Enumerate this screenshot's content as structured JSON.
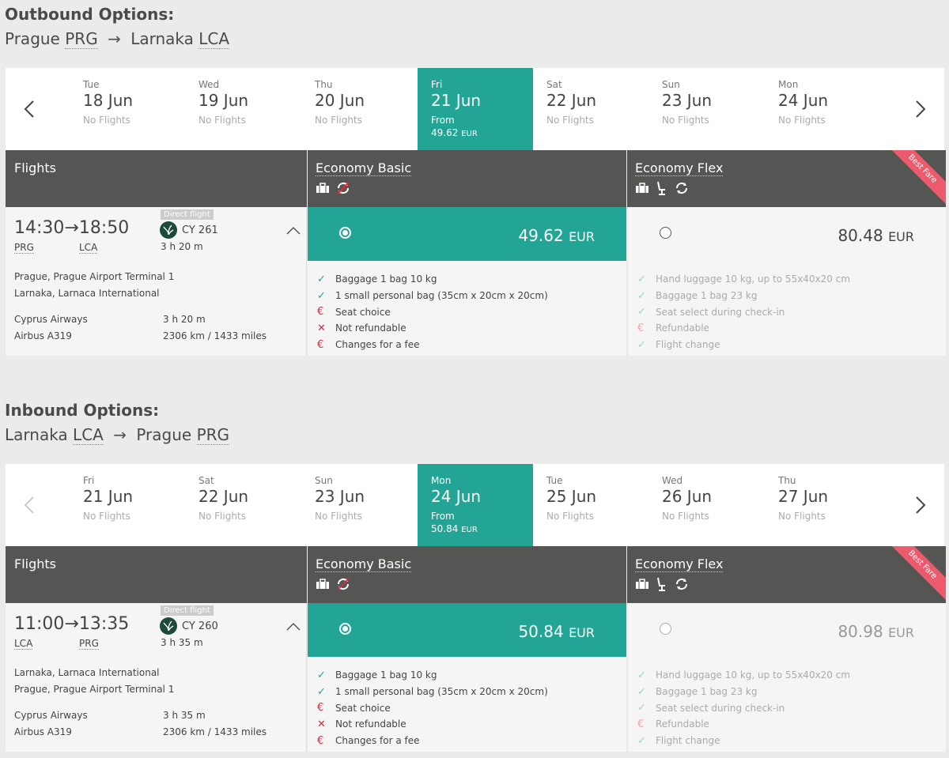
{
  "outbound": {
    "title": "Outbound Options:",
    "from_city": "Prague",
    "from_code": "PRG",
    "to_city": "Larnaka",
    "to_code": "LCA",
    "days": [
      {
        "dow": "Tue",
        "date": "18 Jun",
        "status": "No Flights"
      },
      {
        "dow": "Wed",
        "date": "19 Jun",
        "status": "No Flights"
      },
      {
        "dow": "Thu",
        "date": "20 Jun",
        "status": "No Flights"
      },
      {
        "dow": "Fri",
        "date": "21 Jun",
        "status": "From",
        "price": "49.62",
        "currency": "EUR"
      },
      {
        "dow": "Sat",
        "date": "22 Jun",
        "status": "No Flights"
      },
      {
        "dow": "Sun",
        "date": "23 Jun",
        "status": "No Flights"
      },
      {
        "dow": "Mon",
        "date": "24 Jun",
        "status": "No Flights"
      }
    ],
    "flight": {
      "dep_time": "14:30",
      "arr_time": "18:50",
      "dep_code": "PRG",
      "arr_code": "LCA",
      "direct_badge": "Direct flight",
      "flight_no": "CY 261",
      "duration": "3 h 20 m",
      "dep_airport": "Prague, Prague Airport Terminal 1",
      "arr_airport": "Larnaka, Larnaca International",
      "airline": "Cyprus Airways",
      "duration_detail": "3 h 20 m",
      "aircraft": "Airbus A319",
      "distance": "2306 km / 1433 miles"
    },
    "basic_price": "49.62",
    "flex_price": "80.48"
  },
  "inbound": {
    "title": "Inbound Options:",
    "from_city": "Larnaka",
    "from_code": "LCA",
    "to_city": "Prague",
    "to_code": "PRG",
    "days": [
      {
        "dow": "Fri",
        "date": "21 Jun",
        "status": "No Flights"
      },
      {
        "dow": "Sat",
        "date": "22 Jun",
        "status": "No Flights"
      },
      {
        "dow": "Sun",
        "date": "23 Jun",
        "status": "No Flights"
      },
      {
        "dow": "Mon",
        "date": "24 Jun",
        "status": "From",
        "price": "50.84",
        "currency": "EUR"
      },
      {
        "dow": "Tue",
        "date": "25 Jun",
        "status": "No Flights"
      },
      {
        "dow": "Wed",
        "date": "26 Jun",
        "status": "No Flights"
      },
      {
        "dow": "Thu",
        "date": "27 Jun",
        "status": "No Flights"
      }
    ],
    "flight": {
      "dep_time": "11:00",
      "arr_time": "13:35",
      "dep_code": "LCA",
      "arr_code": "PRG",
      "direct_badge": "Direct flight",
      "flight_no": "CY 260",
      "duration": "3 h 35 m",
      "dep_airport": "Larnaka, Larnaca International",
      "arr_airport": "Prague, Prague Airport Terminal 1",
      "airline": "Cyprus Airways",
      "duration_detail": "3 h 35 m",
      "aircraft": "Airbus A319",
      "distance": "2306 km / 1433 miles"
    },
    "basic_price": "50.84",
    "flex_price": "80.98"
  },
  "headers": {
    "flights": "Flights",
    "basic": "Economy Basic",
    "flex": "Economy Flex",
    "ribbon": "Best Fare"
  },
  "currency": "EUR",
  "basic_features": [
    {
      "icon": "check",
      "text": "Baggage 1 bag 10 kg"
    },
    {
      "icon": "check",
      "text": "1 small personal bag (35cm x 20cm x 20cm)"
    },
    {
      "icon": "euro",
      "text": "Seat choice"
    },
    {
      "icon": "cross",
      "text": "Not refundable"
    },
    {
      "icon": "euro",
      "text": "Changes for a fee"
    }
  ],
  "flex_features": [
    {
      "icon": "check",
      "text": "Hand luggage 10 kg, up to 55x40x20 cm"
    },
    {
      "icon": "check",
      "text": "Baggage 1 bag 23 kg"
    },
    {
      "icon": "check",
      "text": "Seat select during check-in"
    },
    {
      "icon": "euro",
      "text": "Refundable"
    },
    {
      "icon": "check",
      "text": "Flight change"
    }
  ],
  "colors": {
    "accent": "#22a594",
    "header": "#555554",
    "ribbon": "#ec5a6d",
    "warn": "#d9283c"
  }
}
